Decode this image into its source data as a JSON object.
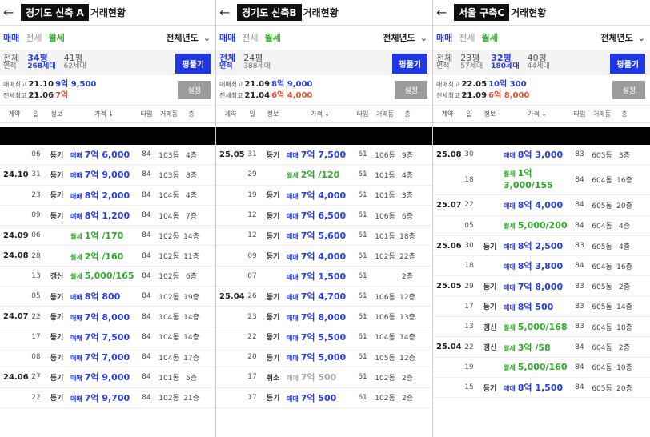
{
  "panels": [
    {
      "title_box": "경기도 신축 A",
      "title_suffix": "거래현황",
      "tabs": [
        "매매",
        "전세",
        "월세"
      ],
      "year_select": "전체년도",
      "areas": [
        {
          "size": "전체",
          "sub": "면적",
          "selected": false
        },
        {
          "size": "34평",
          "sub": "268세대",
          "selected": true
        },
        {
          "size": "41평",
          "sub": "62세대",
          "selected": false
        }
      ],
      "pyeong_button": "평풀기",
      "summary": {
        "buy_label": "매매최고",
        "buy_date": "21.10",
        "buy_price": "9억 9,500",
        "rent_label": "전세최고",
        "rent_date": "21.06",
        "rent_price": "7억"
      },
      "settings_button": "설정",
      "columns": [
        "계약",
        "일",
        "정보",
        "가격 ↓",
        "타입",
        "거래동",
        "층"
      ],
      "rows": [
        {
          "date": "",
          "day": "06",
          "info": "등기",
          "kind": "buy",
          "tp": "매매",
          "amt": "7억 6,000",
          "type": "84",
          "bld": "103동",
          "fl": "4층"
        },
        {
          "date": "24.10",
          "day": "31",
          "info": "등기",
          "kind": "buy",
          "tp": "매매",
          "amt": "7억 9,000",
          "type": "84",
          "bld": "103동",
          "fl": "8층"
        },
        {
          "date": "",
          "day": "23",
          "info": "등기",
          "kind": "buy",
          "tp": "매매",
          "amt": "8억 2,000",
          "type": "84",
          "bld": "104동",
          "fl": "4층"
        },
        {
          "date": "",
          "day": "09",
          "info": "등기",
          "kind": "buy",
          "tp": "매매",
          "amt": "8억 1,200",
          "type": "84",
          "bld": "104동",
          "fl": "7층"
        },
        {
          "date": "24.09",
          "day": "06",
          "info": "",
          "kind": "rent",
          "tp": "월세",
          "amt": "1억 /170",
          "type": "84",
          "bld": "102동",
          "fl": "14층"
        },
        {
          "date": "24.08",
          "day": "28",
          "info": "",
          "kind": "rent",
          "tp": "월세",
          "amt": "2억 /160",
          "type": "84",
          "bld": "102동",
          "fl": "11층"
        },
        {
          "date": "",
          "day": "13",
          "info": "갱신",
          "kind": "rent",
          "tp": "월세",
          "amt": "5,000/165",
          "type": "84",
          "bld": "102동",
          "fl": "6층"
        },
        {
          "date": "",
          "day": "05",
          "info": "등기",
          "kind": "buy",
          "tp": "매매",
          "amt": "8억 800",
          "type": "84",
          "bld": "102동",
          "fl": "19층"
        },
        {
          "date": "24.07",
          "day": "22",
          "info": "등기",
          "kind": "buy",
          "tp": "매매",
          "amt": "7억 8,000",
          "type": "84",
          "bld": "104동",
          "fl": "14층"
        },
        {
          "date": "",
          "day": "17",
          "info": "등기",
          "kind": "buy",
          "tp": "매매",
          "amt": "7억 7,500",
          "type": "84",
          "bld": "104동",
          "fl": "14층"
        },
        {
          "date": "",
          "day": "08",
          "info": "등기",
          "kind": "buy",
          "tp": "매매",
          "amt": "7억 7,000",
          "type": "84",
          "bld": "104동",
          "fl": "17층"
        },
        {
          "date": "24.06",
          "day": "27",
          "info": "등기",
          "kind": "buy",
          "tp": "매매",
          "amt": "7억 9,000",
          "type": "84",
          "bld": "101동",
          "fl": "5층"
        },
        {
          "date": "",
          "day": "22",
          "info": "등기",
          "kind": "buy",
          "tp": "매매",
          "amt": "7억 9,700",
          "type": "84",
          "bld": "102동",
          "fl": "21층"
        }
      ]
    },
    {
      "title_box": "경기도 신축B",
      "title_suffix": "거래현황",
      "tabs": [
        "매매",
        "전세",
        "월세"
      ],
      "year_select": "전체년도",
      "areas": [
        {
          "size": "전체",
          "sub": "면적",
          "selected": true
        },
        {
          "size": "24평",
          "sub": "388세대",
          "selected": false
        }
      ],
      "pyeong_button": "평풀기",
      "summary": {
        "buy_label": "매매최고",
        "buy_date": "21.09",
        "buy_price": "8억 9,000",
        "rent_label": "전세최고",
        "rent_date": "21.04",
        "rent_price": "6억 4,000"
      },
      "settings_button": "설정",
      "columns": [
        "계약",
        "일",
        "정보",
        "가격 ↓",
        "타입",
        "거래동",
        "층"
      ],
      "rows": [
        {
          "date": "25.05",
          "day": "31",
          "info": "등기",
          "kind": "buy",
          "tp": "매매",
          "amt": "7억 7,500",
          "type": "61",
          "bld": "106동",
          "fl": "9층"
        },
        {
          "date": "",
          "day": "29",
          "info": "",
          "kind": "rent",
          "tp": "월세",
          "amt": "2억 /120",
          "type": "61",
          "bld": "101동",
          "fl": "4층"
        },
        {
          "date": "",
          "day": "19",
          "info": "등기",
          "kind": "buy",
          "tp": "매매",
          "amt": "7억 4,000",
          "type": "61",
          "bld": "101동",
          "fl": "3층"
        },
        {
          "date": "",
          "day": "12",
          "info": "등기",
          "kind": "buy",
          "tp": "매매",
          "amt": "7억 6,500",
          "type": "61",
          "bld": "106동",
          "fl": "6층"
        },
        {
          "date": "",
          "day": "12",
          "info": "등기",
          "kind": "buy",
          "tp": "매매",
          "amt": "7억 5,600",
          "type": "61",
          "bld": "101동",
          "fl": "18층"
        },
        {
          "date": "",
          "day": "09",
          "info": "등기",
          "kind": "buy",
          "tp": "매매",
          "amt": "7억 4,000",
          "type": "61",
          "bld": "102동",
          "fl": "22층"
        },
        {
          "date": "",
          "day": "07",
          "info": "",
          "kind": "buy",
          "tp": "매매",
          "amt": "7억 1,500",
          "type": "61",
          "bld": "",
          "fl": "2층"
        },
        {
          "date": "25.04",
          "day": "26",
          "info": "등기",
          "kind": "buy",
          "tp": "매매",
          "amt": "7억 4,700",
          "type": "61",
          "bld": "106동",
          "fl": "12층"
        },
        {
          "date": "",
          "day": "23",
          "info": "등기",
          "kind": "buy",
          "tp": "매매",
          "amt": "7억 8,000",
          "type": "61",
          "bld": "106동",
          "fl": "13층"
        },
        {
          "date": "",
          "day": "22",
          "info": "등기",
          "kind": "buy",
          "tp": "매매",
          "amt": "7억 5,500",
          "type": "61",
          "bld": "104동",
          "fl": "14층"
        },
        {
          "date": "",
          "day": "20",
          "info": "등기",
          "kind": "buy",
          "tp": "매매",
          "amt": "7억 5,000",
          "type": "61",
          "bld": "105동",
          "fl": "12층"
        },
        {
          "date": "",
          "day": "17",
          "info": "취소",
          "kind": "cancel",
          "tp": "매매",
          "amt": "7억 500",
          "type": "61",
          "bld": "102동",
          "fl": "2층"
        },
        {
          "date": "",
          "day": "17",
          "info": "등기",
          "kind": "buy",
          "tp": "매매",
          "amt": "7억 500",
          "type": "61",
          "bld": "102동",
          "fl": "2층"
        }
      ]
    },
    {
      "title_box": "서울 구축C",
      "title_suffix": "거래현황",
      "tabs": [
        "매매",
        "전세",
        "월세"
      ],
      "year_select": "전체년도",
      "areas": [
        {
          "size": "전체",
          "sub": "면적",
          "selected": false
        },
        {
          "size": "23평",
          "sub": "57세대",
          "selected": false
        },
        {
          "size": "32평",
          "sub": "180세대",
          "selected": true
        },
        {
          "size": "40평",
          "sub": "44세대",
          "selected": false
        }
      ],
      "pyeong_button": "평풀기",
      "summary": {
        "buy_label": "매매최고",
        "buy_date": "22.05",
        "buy_price": "10억 300",
        "rent_label": "전세최고",
        "rent_date": "21.09",
        "rent_price": "6억 8,000"
      },
      "settings_button": "설정",
      "columns": [
        "계약",
        "일",
        "정보",
        "가격 ↓",
        "타입",
        "거래동",
        "층"
      ],
      "rows": [
        {
          "date": "25.08",
          "day": "30",
          "info": "",
          "kind": "buy",
          "tp": "매매",
          "amt": "8억 3,000",
          "type": "83",
          "bld": "605동",
          "fl": "3층"
        },
        {
          "date": "",
          "day": "18",
          "info": "",
          "kind": "rent",
          "tp": "월세",
          "amt": "1억 3,000/155",
          "type": "84",
          "bld": "604동",
          "fl": "16층",
          "tall": true
        },
        {
          "date": "25.07",
          "day": "22",
          "info": "",
          "kind": "buy",
          "tp": "매매",
          "amt": "8억 4,000",
          "type": "84",
          "bld": "605동",
          "fl": "20층"
        },
        {
          "date": "",
          "day": "05",
          "info": "",
          "kind": "rent",
          "tp": "월세",
          "amt": "5,000/200",
          "type": "84",
          "bld": "604동",
          "fl": "4층"
        },
        {
          "date": "25.06",
          "day": "30",
          "info": "등기",
          "kind": "buy",
          "tp": "매매",
          "amt": "8억 2,500",
          "type": "83",
          "bld": "605동",
          "fl": "4층"
        },
        {
          "date": "",
          "day": "18",
          "info": "",
          "kind": "buy",
          "tp": "매매",
          "amt": "8억 3,800",
          "type": "84",
          "bld": "604동",
          "fl": "16층"
        },
        {
          "date": "25.05",
          "day": "29",
          "info": "등기",
          "kind": "buy",
          "tp": "매매",
          "amt": "7억 8,000",
          "type": "83",
          "bld": "605동",
          "fl": "2층"
        },
        {
          "date": "",
          "day": "17",
          "info": "등기",
          "kind": "buy",
          "tp": "매매",
          "amt": "8억 500",
          "type": "83",
          "bld": "605동",
          "fl": "14층"
        },
        {
          "date": "",
          "day": "13",
          "info": "갱신",
          "kind": "rent",
          "tp": "월세",
          "amt": "5,000/168",
          "type": "83",
          "bld": "604동",
          "fl": "18층"
        },
        {
          "date": "25.04",
          "day": "22",
          "info": "갱신",
          "kind": "rent",
          "tp": "월세",
          "amt": "3억 /58",
          "type": "84",
          "bld": "604동",
          "fl": "2층"
        },
        {
          "date": "",
          "day": "19",
          "info": "",
          "kind": "rent",
          "tp": "월세",
          "amt": "5,000/160",
          "type": "84",
          "bld": "604동",
          "fl": "10층"
        },
        {
          "date": "",
          "day": "15",
          "info": "등기",
          "kind": "buy",
          "tp": "매매",
          "amt": "8억 1,500",
          "type": "84",
          "bld": "605동",
          "fl": "20층"
        }
      ]
    }
  ]
}
